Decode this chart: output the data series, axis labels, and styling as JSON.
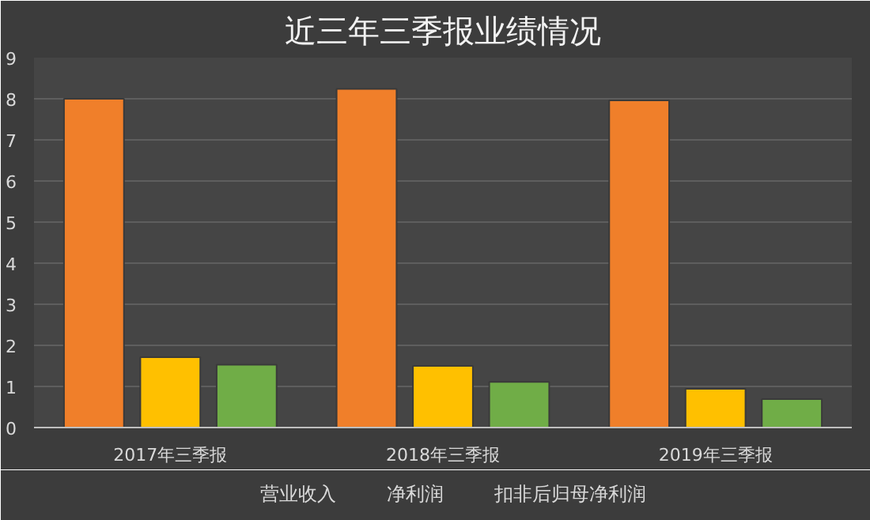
{
  "chart_data": {
    "type": "bar",
    "title": "近三年三季报业绩情况",
    "categories": [
      "2017年三季报",
      "2018年三季报",
      "2019年三季报"
    ],
    "series": [
      {
        "name": "营业收入",
        "color": "#f07f2a",
        "values": [
          8.0,
          8.24,
          7.96
        ]
      },
      {
        "name": "净利润",
        "color": "#ffc000",
        "values": [
          1.71,
          1.5,
          0.94
        ]
      },
      {
        "name": "扣非后归母净利润",
        "color": "#70ad47",
        "values": [
          1.53,
          1.11,
          0.69
        ]
      }
    ],
    "ylim": [
      0,
      9
    ],
    "yticks": [
      0,
      1,
      2,
      3,
      4,
      5,
      6,
      7,
      8,
      9
    ],
    "grid": "y",
    "legend": "bottom"
  }
}
